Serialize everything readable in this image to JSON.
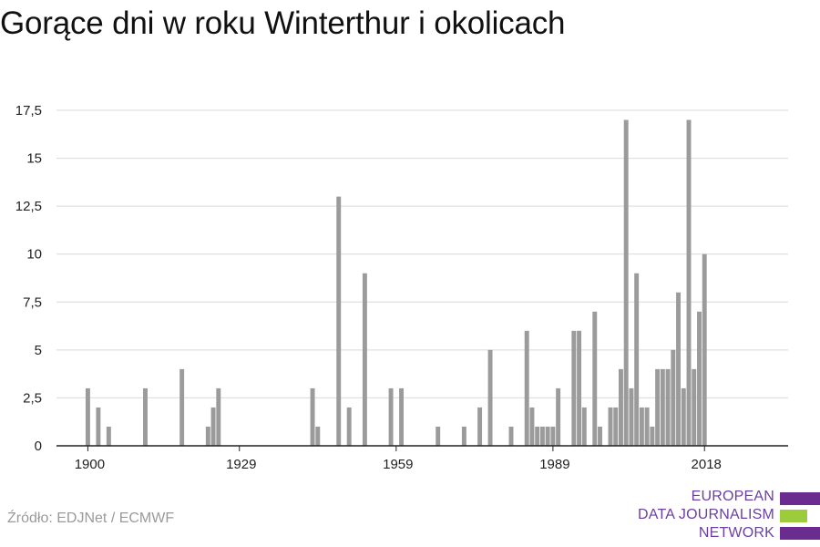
{
  "title": "Gorące dni w roku Winterthur i okolicach",
  "source": "Źródło: EDJNet / ECMWF",
  "logo": {
    "lines": [
      "EUROPEAN",
      "DATA JOURNALISM",
      "NETWORK"
    ],
    "bar_colors": [
      "#6b2c8f",
      "#9ccb3b",
      "#6b2c8f"
    ]
  },
  "colors": {
    "bar": "#9b9b9b",
    "grid": "#d9d9d9",
    "axis": "#222222"
  },
  "chart_data": {
    "type": "bar",
    "title": "Gorące dni w roku Winterthur i okolicach",
    "xlabel": "",
    "ylabel": "",
    "xlim": [
      1894,
      2034
    ],
    "ylim": [
      0,
      17.5
    ],
    "y_ticks": [
      {
        "value": 0,
        "label": "0"
      },
      {
        "value": 2.5,
        "label": "2,5"
      },
      {
        "value": 5,
        "label": "5"
      },
      {
        "value": 7.5,
        "label": "7,5"
      },
      {
        "value": 10,
        "label": "10"
      },
      {
        "value": 12.5,
        "label": "12,5"
      },
      {
        "value": 15,
        "label": "15"
      },
      {
        "value": 17.5,
        "label": "17,5"
      }
    ],
    "x_ticks": [
      {
        "value": 1900,
        "label": "1900"
      },
      {
        "value": 1929,
        "label": "1929"
      },
      {
        "value": 1959,
        "label": "1959"
      },
      {
        "value": 1989,
        "label": "1989"
      },
      {
        "value": 2018,
        "label": "2018"
      }
    ],
    "grid": true,
    "x": [
      1900,
      1902,
      1904,
      1911,
      1918,
      1923,
      1924,
      1925,
      1943,
      1944,
      1948,
      1950,
      1953,
      1958,
      1960,
      1967,
      1972,
      1975,
      1977,
      1981,
      1984,
      1985,
      1986,
      1987,
      1988,
      1989,
      1990,
      1993,
      1994,
      1995,
      1997,
      1998,
      2000,
      2001,
      2002,
      2003,
      2004,
      2005,
      2006,
      2007,
      2008,
      2009,
      2010,
      2011,
      2012,
      2013,
      2014,
      2015,
      2016,
      2017,
      2018,
      2019,
      2020,
      2021
    ],
    "values": [
      3,
      2,
      1,
      3,
      4,
      1,
      2,
      3,
      3,
      1,
      13,
      2,
      9,
      3,
      3,
      1,
      1,
      2,
      5,
      1,
      6,
      2,
      1,
      1,
      1,
      1,
      3,
      6,
      6,
      2,
      7,
      1,
      2,
      2,
      4,
      17,
      3,
      9,
      2,
      2,
      1,
      4,
      4,
      4,
      5,
      8,
      3,
      17,
      4,
      7,
      10,
      0,
      0,
      0
    ]
  }
}
